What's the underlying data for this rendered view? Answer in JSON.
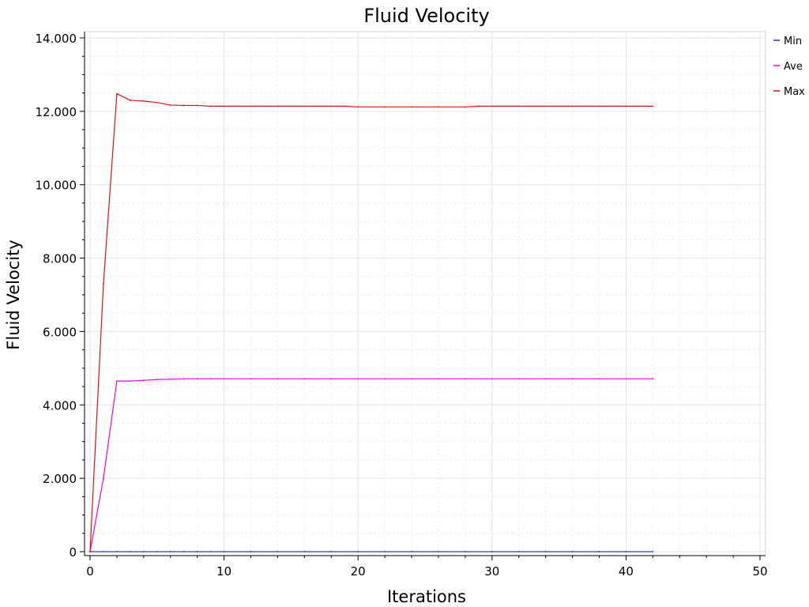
{
  "chart_data": {
    "type": "line",
    "title": "Fluid Velocity",
    "xlabel": "Iterations",
    "ylabel": "Fluid Velocity",
    "xlim": [
      0,
      50
    ],
    "ylim": [
      0,
      14
    ],
    "x_ticks": [
      0,
      10,
      20,
      30,
      40,
      50
    ],
    "x_tick_labels": [
      "0",
      "10",
      "20",
      "30",
      "40",
      "50"
    ],
    "y_ticks": [
      0,
      2,
      4,
      6,
      8,
      10,
      12,
      14
    ],
    "y_tick_labels": [
      "0",
      "2.000",
      "4.000",
      "6.000",
      "8.000",
      "10.000",
      "12.000",
      "14.000"
    ],
    "grid": true,
    "legend_position": "top-right",
    "series": [
      {
        "name": "Min",
        "color": "#3333cc",
        "x": [
          0,
          1,
          2,
          3,
          4,
          5,
          6,
          7,
          8,
          9,
          10,
          12,
          14,
          16,
          18,
          20,
          22,
          24,
          26,
          28,
          30,
          32,
          34,
          36,
          38,
          40,
          42
        ],
        "y": [
          0,
          0,
          0,
          0,
          0,
          0,
          0,
          0,
          0,
          0,
          0,
          0,
          0,
          0,
          0,
          0,
          0,
          0,
          0,
          0,
          0,
          0,
          0,
          0,
          0,
          0,
          0
        ]
      },
      {
        "name": "Ave",
        "color": "#ee00ee",
        "x": [
          0,
          1,
          2,
          3,
          4,
          5,
          6,
          7,
          8,
          9,
          10,
          12,
          14,
          16,
          18,
          20,
          22,
          24,
          26,
          28,
          30,
          32,
          34,
          36,
          38,
          40,
          42
        ],
        "y": [
          0,
          2.0,
          4.65,
          4.65,
          4.67,
          4.69,
          4.7,
          4.71,
          4.71,
          4.71,
          4.71,
          4.71,
          4.71,
          4.71,
          4.71,
          4.71,
          4.71,
          4.71,
          4.71,
          4.71,
          4.71,
          4.71,
          4.71,
          4.71,
          4.71,
          4.71,
          4.71
        ]
      },
      {
        "name": "Max",
        "color": "#dd1111",
        "x": [
          0,
          1,
          2,
          3,
          4,
          5,
          6,
          7,
          8,
          9,
          10,
          12,
          14,
          16,
          18,
          19,
          20,
          22,
          24,
          26,
          28,
          29,
          30,
          32,
          34,
          36,
          38,
          40,
          42
        ],
        "y": [
          0,
          7.3,
          12.48,
          12.3,
          12.28,
          12.24,
          12.17,
          12.16,
          12.16,
          12.14,
          12.14,
          12.14,
          12.14,
          12.14,
          12.14,
          12.14,
          12.12,
          12.12,
          12.12,
          12.12,
          12.12,
          12.14,
          12.14,
          12.14,
          12.14,
          12.14,
          12.14,
          12.14,
          12.14
        ]
      }
    ]
  }
}
